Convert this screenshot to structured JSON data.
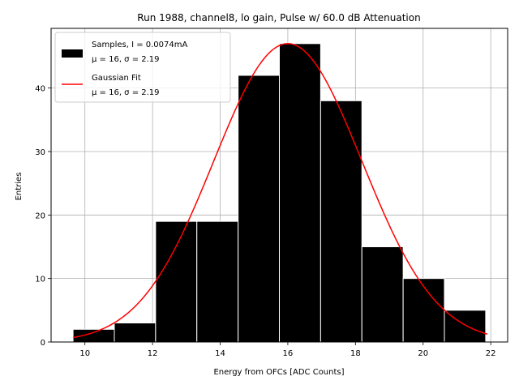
{
  "chart_data": {
    "type": "bar",
    "title": "Run 1988, channel8, lo gain, Pulse w/ 60.0 dB Attenuation",
    "xlabel": "Energy from OFCs [ADC Counts]",
    "ylabel": "Entries",
    "xlim": [
      9.0,
      22.5
    ],
    "ylim": [
      0,
      49.4
    ],
    "xticks": [
      10,
      12,
      14,
      16,
      18,
      20,
      22
    ],
    "yticks": [
      0,
      10,
      20,
      30,
      40
    ],
    "grid": true,
    "histogram": {
      "name": "Samples, I = 0.0074mA",
      "bin_edges": [
        9.65,
        10.87,
        12.09,
        13.31,
        14.53,
        15.75,
        16.97,
        18.19,
        19.41,
        20.63,
        21.85
      ],
      "counts": [
        2,
        3,
        19,
        19,
        42,
        47,
        38,
        15,
        10,
        5
      ],
      "color": "#000000",
      "edge_color": "#ffffff"
    },
    "fit": {
      "name": "Gaussian Fit",
      "type": "gaussian",
      "amplitude": 47.0,
      "mu": 16.0,
      "sigma": 2.19,
      "x_range": [
        9.65,
        21.9
      ],
      "color": "#ff0000"
    },
    "legend": {
      "position": "upper-left",
      "entries": [
        {
          "label": "Samples, I = 0.0074mA",
          "stats": "μ = 16, σ = 2.19",
          "kind": "patch",
          "color": "#000000"
        },
        {
          "label": "Gaussian Fit",
          "stats": "μ = 16, σ = 2.19",
          "kind": "line",
          "color": "#ff0000"
        }
      ]
    }
  }
}
